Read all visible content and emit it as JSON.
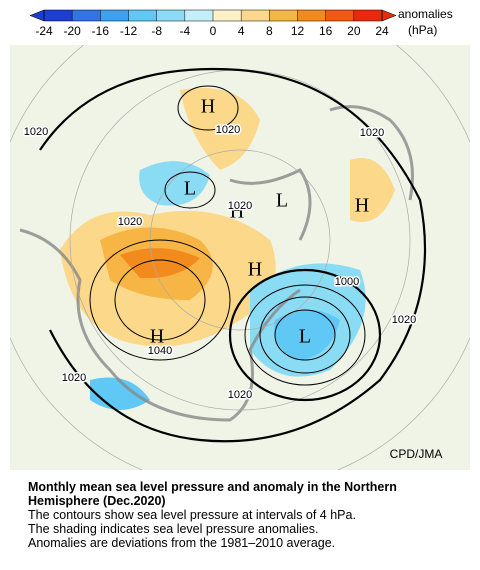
{
  "colorbar": {
    "ticks": [
      -24,
      -20,
      -16,
      -12,
      -8,
      -4,
      0,
      4,
      8,
      12,
      16,
      20,
      24
    ],
    "colors": [
      "#1c3fd0",
      "#2f74e8",
      "#3ea0f0",
      "#5fc8f4",
      "#8adcf4",
      "#c4eef8",
      "#fdf1c8",
      "#fbd88a",
      "#f7b545",
      "#f38a1e",
      "#f05a10",
      "#e82a0a"
    ],
    "label": "anomalies",
    "unit": "(hPa)"
  },
  "map": {
    "labels": [
      "H",
      "1020",
      "1020",
      "L",
      "L",
      "H",
      "1020",
      "1020",
      "H",
      "1020",
      "H",
      "1000",
      "1020",
      "L",
      "H",
      "1040",
      "1020",
      "1020"
    ],
    "credit": "CPD/JMA"
  },
  "caption": {
    "title": "Monthly mean sea level pressure and anomaly in the Northern Hemisphere (Dec.2020)",
    "lines": [
      "The contours show sea level pressure at intervals of 4 hPa.",
      "The shading indicates sea level pressure anomalies.",
      "Anomalies are deviations from the 1981–2010 average."
    ]
  }
}
